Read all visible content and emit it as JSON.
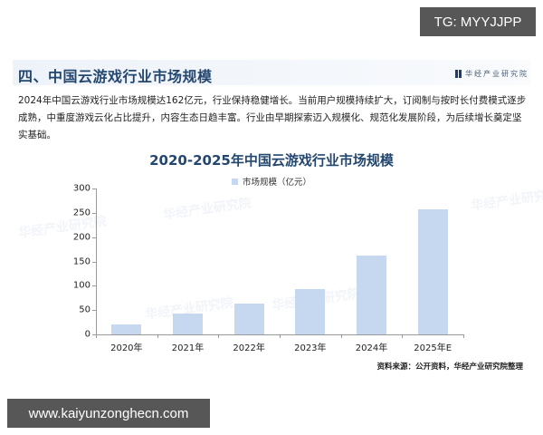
{
  "overlays": {
    "tg_label": "TG: MYYJJPP",
    "site_label": "www.kaiyunzonghecn.com"
  },
  "section": {
    "title": "四、中国云游戏行业市场规模",
    "brand": "华经产业研究院",
    "brand_icon": "bookmark-logo-icon"
  },
  "intro": {
    "text": "2024年中国云游戏行业市场规模达162亿元，行业保持稳健增长。当前用户规模持续扩大，订阅制与按时长付费模式逐步成熟，中重度游戏云化占比提升，内容生态日趋丰富。行业由早期探索迈入规模化、规范化发展阶段，为后续增长奠定坚实基础。"
  },
  "source": "资料来源：公开资料，华经产业研究院整理",
  "watermark": "华经产业研究院",
  "colors": {
    "bar": "#c6d8ef",
    "title": "#24476f",
    "axis": "#9a9a9a",
    "overlay_bg": "#575757"
  },
  "chart_data": {
    "type": "bar",
    "title": "2020-2025年中国云游戏行业市场规模",
    "legend": [
      "市场规模（亿元）"
    ],
    "legend_position": "top",
    "categories": [
      "2020年",
      "2021年",
      "2022年",
      "2023年",
      "2024年",
      "2025年E"
    ],
    "series": [
      {
        "name": "市场规模（亿元）",
        "values": [
          20,
          43,
          63,
          93,
          162,
          257
        ]
      }
    ],
    "xlabel": "",
    "ylabel": "",
    "ylim": [
      0,
      300
    ],
    "yticks": [
      0,
      50,
      100,
      150,
      200,
      250,
      300
    ],
    "grid": false
  }
}
